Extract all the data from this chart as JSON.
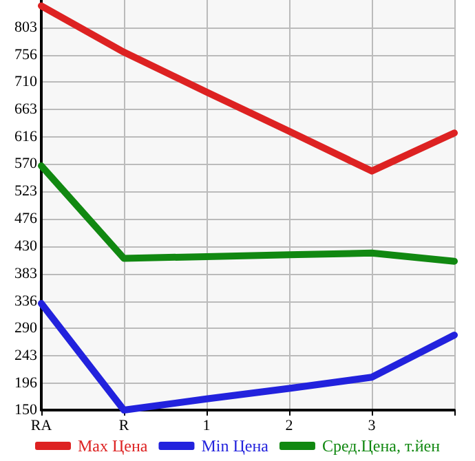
{
  "chart_data": {
    "type": "line",
    "categories": [
      "RA",
      "R",
      "1",
      "2",
      "3",
      null
    ],
    "series": [
      {
        "name": "Max Цена",
        "color": "#dd2222",
        "values": [
          840,
          761,
          693,
          626,
          558,
          623
        ]
      },
      {
        "name": "Min Цена",
        "color": "#2222dd",
        "values": [
          332,
          150,
          169,
          187,
          206,
          278
        ]
      },
      {
        "name": "Сред.Цена, т.йен",
        "color": "#118811",
        "values": [
          567,
          409,
          412,
          415,
          418,
          404
        ]
      }
    ],
    "ylim": [
      150,
      850
    ],
    "yticks": [
      150,
      196,
      243,
      290,
      336,
      383,
      430,
      476,
      523,
      570,
      616,
      663,
      710,
      756,
      803
    ],
    "grid": true,
    "legend": "bottom",
    "marker": "none",
    "line_style": "solid"
  }
}
